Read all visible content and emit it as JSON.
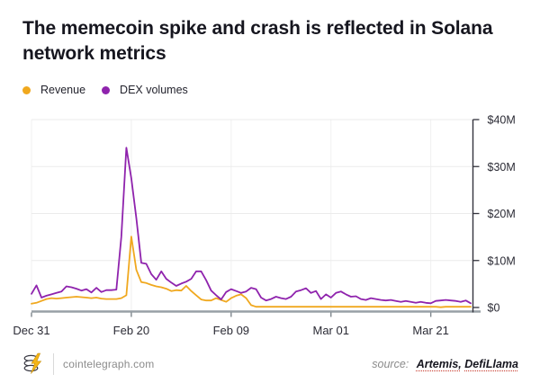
{
  "title": {
    "line1": "The memecoin spike and crash is reflected in Solana",
    "line2": "network metrics"
  },
  "legend": [
    {
      "label": "Revenue",
      "color": "#F0A81E"
    },
    {
      "label": "DEX volumes",
      "color": "#8F23AD"
    }
  ],
  "footer": {
    "site": "cointelegraph.com",
    "source_prefix": "source:",
    "source_1": "Artemis,",
    "source_2": "DefiLlama"
  },
  "chart_data": {
    "type": "line",
    "title": "The memecoin spike and crash is reflected in Solana network metrics",
    "unit": "USD, millions",
    "interval": "daily",
    "n_points": 89,
    "ylim": [
      0,
      40
    ],
    "grid": true,
    "legend_position": "top-left",
    "x_tick_labels": [
      "Dec 31",
      "Feb 20",
      "Feb 09",
      "Mar 01",
      "Mar 21"
    ],
    "x_tick_indices": [
      0,
      20,
      40,
      60,
      80
    ],
    "y_tick_labels": [
      "$0",
      "$10M",
      "$20M",
      "$30M",
      "$40M"
    ],
    "y_tick_values": [
      0,
      10,
      20,
      30,
      40
    ],
    "series": [
      {
        "name": "Revenue",
        "color": "#F0A81E",
        "values": [
          0.8,
          1.0,
          1.4,
          1.8,
          2.0,
          1.9,
          2.0,
          2.1,
          2.2,
          2.3,
          2.2,
          2.1,
          2.0,
          2.1,
          1.9,
          1.8,
          1.8,
          1.8,
          2.0,
          2.6,
          15.1,
          8.0,
          5.4,
          5.2,
          4.8,
          4.5,
          4.3,
          4.0,
          3.5,
          3.7,
          3.6,
          4.6,
          3.5,
          2.6,
          1.7,
          1.5,
          1.5,
          2.0,
          1.6,
          1.2,
          2.0,
          2.5,
          2.8,
          2.0,
          0.5,
          0.15,
          0.15,
          0.15,
          0.15,
          0.15,
          0.15,
          0.15,
          0.15,
          0.15,
          0.15,
          0.15,
          0.15,
          0.15,
          0.15,
          0.15,
          0.15,
          0.15,
          0.15,
          0.15,
          0.15,
          0.15,
          0.15,
          0.15,
          0.15,
          0.15,
          0.15,
          0.15,
          0.15,
          0.15,
          0.15,
          0.15,
          0.15,
          0.15,
          0.15,
          0.15,
          0.15,
          0.15,
          0.05,
          0.15,
          0.15,
          0.15,
          0.15,
          0.15,
          0.15
        ]
      },
      {
        "name": "DEX volumes",
        "color": "#8F23AD",
        "values": [
          2.9,
          4.7,
          2.1,
          2.5,
          2.8,
          3.1,
          3.4,
          4.5,
          4.3,
          4.0,
          3.6,
          3.9,
          3.2,
          4.2,
          3.3,
          3.7,
          3.7,
          3.8,
          15.0,
          34.0,
          27.5,
          19.0,
          9.5,
          9.3,
          7.1,
          5.9,
          7.7,
          6.1,
          5.3,
          4.6,
          5.1,
          5.5,
          6.1,
          7.7,
          7.7,
          5.8,
          3.6,
          2.6,
          1.7,
          3.3,
          3.9,
          3.5,
          3.1,
          3.4,
          4.2,
          3.9,
          2.1,
          1.5,
          1.8,
          2.3,
          2.0,
          1.8,
          2.3,
          3.4,
          3.7,
          4.1,
          3.1,
          3.5,
          1.8,
          2.8,
          2.1,
          3.1,
          3.4,
          2.8,
          2.3,
          2.4,
          1.8,
          1.6,
          2.0,
          1.8,
          1.6,
          1.5,
          1.6,
          1.4,
          1.2,
          1.4,
          1.2,
          1.0,
          1.2,
          1.0,
          0.9,
          1.4,
          1.5,
          1.6,
          1.5,
          1.4,
          1.2,
          1.5,
          0.9
        ]
      }
    ]
  }
}
